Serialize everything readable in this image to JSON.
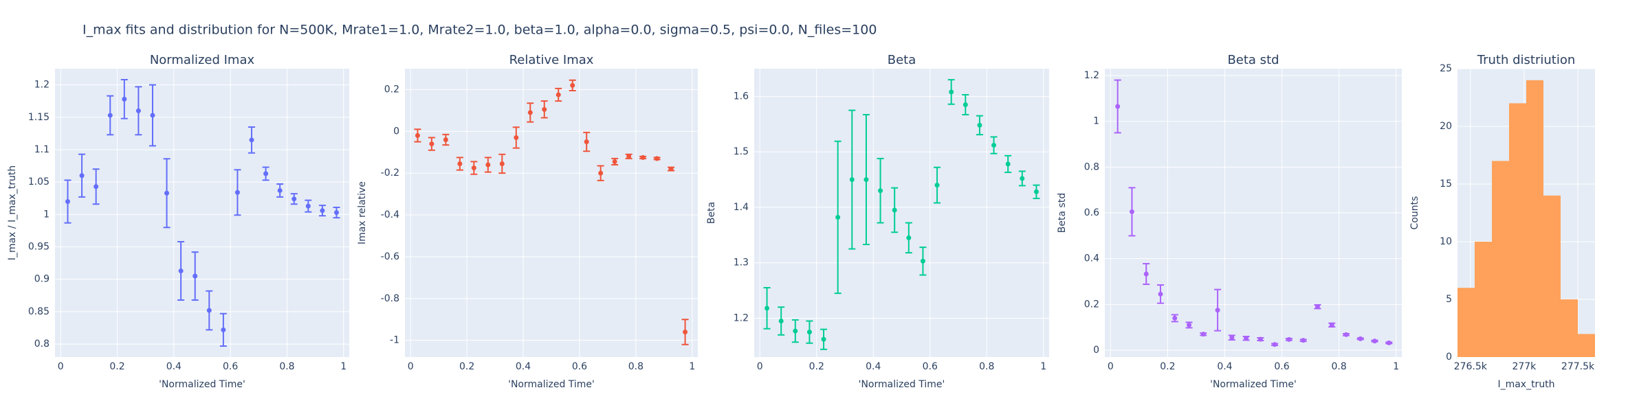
{
  "title": "I_max fits and distribution for N=500K, Mrate1=1.0, Mrate2=1.0, beta=1.0, alpha=0.0, sigma=0.5,  psi=0.0, N_files=100",
  "chart_data": [
    {
      "type": "scatter",
      "title": "Normalized Imax",
      "xlabel": "'Normalized Time'",
      "ylabel": "I_max / I_max_truth",
      "color": "#636efa",
      "x": [
        0.025,
        0.075,
        0.125,
        0.175,
        0.225,
        0.275,
        0.325,
        0.375,
        0.425,
        0.475,
        0.525,
        0.575,
        0.625,
        0.675,
        0.725,
        0.775,
        0.825,
        0.875,
        0.925,
        0.975
      ],
      "values": [
        1.02,
        1.06,
        1.043,
        1.153,
        1.178,
        1.16,
        1.153,
        1.033,
        0.913,
        0.905,
        0.852,
        0.822,
        1.034,
        1.115,
        1.063,
        1.037,
        1.024,
        1.013,
        1.006,
        1.003
      ],
      "errors": [
        0.033,
        0.033,
        0.027,
        0.03,
        0.03,
        0.037,
        0.047,
        0.053,
        0.045,
        0.037,
        0.03,
        0.025,
        0.035,
        0.02,
        0.01,
        0.01,
        0.008,
        0.009,
        0.008,
        0.008
      ],
      "xlim": [
        -0.02,
        1.02
      ],
      "xticks": [
        0,
        0.2,
        0.4,
        0.6,
        0.8,
        1
      ],
      "ylim": [
        0.78,
        1.225
      ],
      "yticks": [
        0.8,
        0.85,
        0.9,
        0.95,
        1,
        1.05,
        1.1,
        1.15,
        1.2
      ],
      "grid": true
    },
    {
      "type": "scatter",
      "title": "Relative Imax",
      "xlabel": "'Normalized Time'",
      "ylabel": "Imax relative",
      "color": "#ef553b",
      "x": [
        0.025,
        0.075,
        0.125,
        0.175,
        0.225,
        0.275,
        0.325,
        0.375,
        0.425,
        0.475,
        0.525,
        0.575,
        0.625,
        0.675,
        0.725,
        0.775,
        0.825,
        0.875,
        0.925,
        0.975
      ],
      "values": [
        -0.02,
        -0.06,
        -0.04,
        -0.155,
        -0.175,
        -0.16,
        -0.155,
        -0.03,
        0.09,
        0.105,
        0.175,
        0.22,
        -0.05,
        -0.2,
        -0.145,
        -0.12,
        -0.125,
        -0.13,
        -0.18,
        -0.96
      ],
      "errors": [
        0.03,
        0.03,
        0.025,
        0.03,
        0.03,
        0.035,
        0.045,
        0.05,
        0.045,
        0.04,
        0.03,
        0.025,
        0.045,
        0.035,
        0.015,
        0.01,
        0.005,
        0.005,
        0.008,
        0.06
      ],
      "xlim": [
        -0.02,
        1.02
      ],
      "xticks": [
        0,
        0.2,
        0.4,
        0.6,
        0.8,
        1
      ],
      "ylim": [
        -1.08,
        0.3
      ],
      "yticks": [
        -1,
        -0.8,
        -0.6,
        -0.4,
        -0.2,
        0,
        0.2
      ],
      "grid": true
    },
    {
      "type": "scatter",
      "title": "Beta",
      "xlabel": "'Normalized Time'",
      "ylabel": "Beta",
      "color": "#00cc96",
      "x": [
        0.025,
        0.075,
        0.125,
        0.175,
        0.225,
        0.275,
        0.325,
        0.375,
        0.425,
        0.475,
        0.525,
        0.575,
        0.625,
        0.675,
        0.725,
        0.775,
        0.825,
        0.875,
        0.925,
        0.975
      ],
      "values": [
        1.218,
        1.195,
        1.177,
        1.175,
        1.162,
        1.382,
        1.45,
        1.45,
        1.43,
        1.395,
        1.345,
        1.303,
        1.44,
        1.608,
        1.585,
        1.548,
        1.512,
        1.478,
        1.452,
        1.428
      ],
      "errors": [
        0.037,
        0.025,
        0.02,
        0.02,
        0.018,
        0.137,
        0.125,
        0.117,
        0.058,
        0.04,
        0.027,
        0.025,
        0.032,
        0.022,
        0.018,
        0.017,
        0.015,
        0.015,
        0.013,
        0.012
      ],
      "xlim": [
        -0.02,
        1.02
      ],
      "xticks": [
        0,
        0.2,
        0.4,
        0.6,
        0.8,
        1
      ],
      "ylim": [
        1.13,
        1.65
      ],
      "yticks": [
        1.2,
        1.3,
        1.4,
        1.5,
        1.6
      ],
      "grid": true
    },
    {
      "type": "scatter",
      "title": "Beta std",
      "xlabel": "'Normalized Time'",
      "ylabel": "Beta std",
      "color": "#ab63fa",
      "x": [
        0.025,
        0.075,
        0.125,
        0.175,
        0.225,
        0.275,
        0.325,
        0.375,
        0.425,
        0.475,
        0.525,
        0.575,
        0.625,
        0.675,
        0.725,
        0.775,
        0.825,
        0.875,
        0.925,
        0.975
      ],
      "values": [
        1.065,
        0.605,
        0.333,
        0.245,
        0.14,
        0.11,
        0.07,
        0.175,
        0.055,
        0.052,
        0.048,
        0.025,
        0.047,
        0.043,
        0.19,
        0.11,
        0.068,
        0.05,
        0.04,
        0.032
      ],
      "errors": [
        0.115,
        0.105,
        0.045,
        0.04,
        0.015,
        0.012,
        0.005,
        0.09,
        0.01,
        0.008,
        0.006,
        0.004,
        0.004,
        0.004,
        0.008,
        0.008,
        0.004,
        0.003,
        0.003,
        0.003
      ],
      "xlim": [
        -0.02,
        1.02
      ],
      "xticks": [
        0,
        0.2,
        0.4,
        0.6,
        0.8,
        1
      ],
      "ylim": [
        -0.03,
        1.23
      ],
      "yticks": [
        0,
        0.2,
        0.4,
        0.6,
        0.8,
        1,
        1.2
      ],
      "grid": true
    },
    {
      "type": "histogram",
      "title": "Truth distriution",
      "xlabel": "I_max_truth",
      "ylabel": "Counts",
      "color": "#ffa15a",
      "bins": [
        276380,
        276540,
        276700,
        276860,
        277020,
        277180,
        277340,
        277500,
        277660
      ],
      "values": [
        6,
        10,
        17,
        22,
        24,
        14,
        5,
        2
      ],
      "xlim": [
        276380,
        277660
      ],
      "xticks": [
        {
          "value": 276500,
          "label": "276.5k"
        },
        {
          "value": 277000,
          "label": "277k"
        },
        {
          "value": 277500,
          "label": "277.5k"
        }
      ],
      "ylim": [
        0,
        25
      ],
      "yticks": [
        0,
        5,
        10,
        15,
        20,
        25
      ],
      "grid": true
    }
  ]
}
